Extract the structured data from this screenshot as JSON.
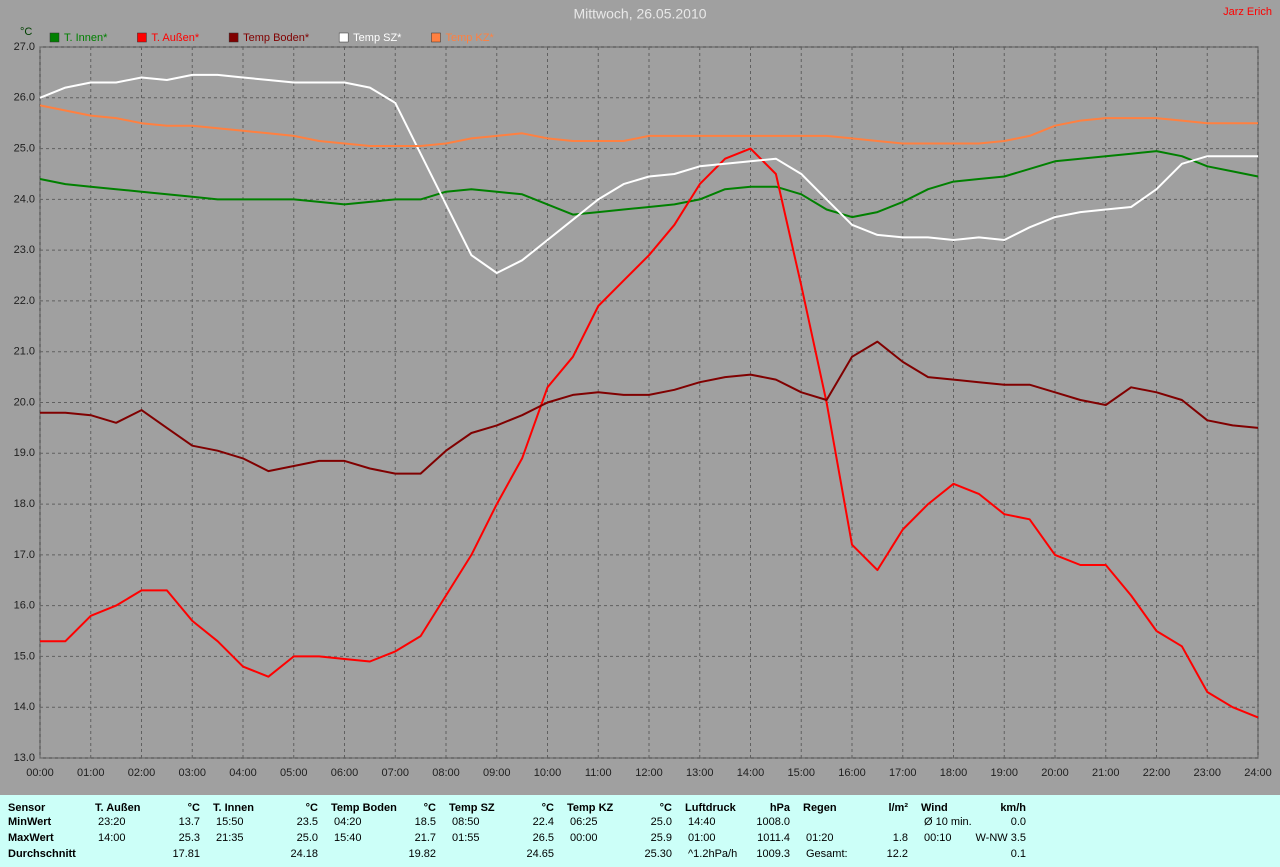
{
  "chart_data": {
    "type": "line",
    "title": "Mittwoch, 26.05.2010",
    "author": "Jarz Erich",
    "y_unit": "°C",
    "x": [
      0,
      0.5,
      1,
      1.5,
      2,
      2.5,
      3,
      3.5,
      4,
      4.5,
      5,
      5.5,
      6,
      6.5,
      7,
      7.5,
      8,
      8.5,
      9,
      9.5,
      10,
      10.5,
      11,
      11.5,
      12,
      12.5,
      13,
      13.5,
      14,
      14.5,
      15,
      15.5,
      16,
      16.5,
      17,
      17.5,
      18,
      18.5,
      19,
      19.5,
      20,
      20.5,
      21,
      21.5,
      22,
      22.5,
      23,
      23.5,
      24
    ],
    "xlim": [
      0,
      24
    ],
    "xticks": [
      {
        "value": 0,
        "label": "00:00"
      },
      {
        "value": 1,
        "label": "01:00"
      },
      {
        "value": 2,
        "label": "02:00"
      },
      {
        "value": 3,
        "label": "03:00"
      },
      {
        "value": 4,
        "label": "04:00"
      },
      {
        "value": 5,
        "label": "05:00"
      },
      {
        "value": 6,
        "label": "06:00"
      },
      {
        "value": 7,
        "label": "07:00"
      },
      {
        "value": 8,
        "label": "08:00"
      },
      {
        "value": 9,
        "label": "09:00"
      },
      {
        "value": 10,
        "label": "10:00"
      },
      {
        "value": 11,
        "label": "11:00"
      },
      {
        "value": 12,
        "label": "12:00"
      },
      {
        "value": 13,
        "label": "13:00"
      },
      {
        "value": 14,
        "label": "14:00"
      },
      {
        "value": 15,
        "label": "15:00"
      },
      {
        "value": 16,
        "label": "16:00"
      },
      {
        "value": 17,
        "label": "17:00"
      },
      {
        "value": 18,
        "label": "18:00"
      },
      {
        "value": 19,
        "label": "19:00"
      },
      {
        "value": 20,
        "label": "20:00"
      },
      {
        "value": 21,
        "label": "21:00"
      },
      {
        "value": 22,
        "label": "22:00"
      },
      {
        "value": 23,
        "label": "23:00"
      },
      {
        "value": 24,
        "label": "24:00"
      }
    ],
    "ylim": [
      13,
      27
    ],
    "yticks": [
      {
        "value": 13,
        "label": "13.0"
      },
      {
        "value": 14,
        "label": "14.0"
      },
      {
        "value": 15,
        "label": "15.0"
      },
      {
        "value": 16,
        "label": "16.0"
      },
      {
        "value": 17,
        "label": "17.0"
      },
      {
        "value": 18,
        "label": "18.0"
      },
      {
        "value": 19,
        "label": "19.0"
      },
      {
        "value": 20,
        "label": "20.0"
      },
      {
        "value": 21,
        "label": "21.0"
      },
      {
        "value": 22,
        "label": "22.0"
      },
      {
        "value": 23,
        "label": "23.0"
      },
      {
        "value": 24,
        "label": "24.0"
      },
      {
        "value": 25,
        "label": "25.0"
      },
      {
        "value": 26,
        "label": "26.0"
      },
      {
        "value": 27,
        "label": "27.0"
      }
    ],
    "grid": true,
    "series": [
      {
        "name": "T. Innen*",
        "color": "#008000",
        "values": [
          24.4,
          24.3,
          24.25,
          24.2,
          24.15,
          24.1,
          24.05,
          24.0,
          24.0,
          24.0,
          24.0,
          23.95,
          23.9,
          23.95,
          24.0,
          24.0,
          24.15,
          24.2,
          24.15,
          24.1,
          23.9,
          23.7,
          23.75,
          23.8,
          23.85,
          23.9,
          24.0,
          24.2,
          24.25,
          24.25,
          24.1,
          23.8,
          23.65,
          23.75,
          23.95,
          24.2,
          24.35,
          24.4,
          24.45,
          24.6,
          24.75,
          24.8,
          24.85,
          24.9,
          24.95,
          24.85,
          24.65,
          24.55,
          24.45
        ]
      },
      {
        "name": "T. Außen*",
        "color": "#ff0000",
        "values": [
          15.3,
          15.3,
          15.8,
          16.0,
          16.3,
          16.3,
          15.7,
          15.3,
          14.8,
          14.6,
          15.0,
          15.0,
          14.95,
          14.9,
          15.1,
          15.4,
          16.2,
          17.0,
          18.0,
          18.9,
          20.3,
          20.9,
          21.9,
          22.4,
          22.9,
          23.5,
          24.3,
          24.8,
          25.0,
          24.5,
          22.3,
          20.0,
          17.2,
          16.7,
          17.5,
          18.0,
          18.4,
          18.2,
          17.8,
          17.7,
          17.0,
          16.8,
          16.8,
          16.2,
          15.5,
          15.2,
          14.3,
          14.0,
          13.8
        ]
      },
      {
        "name": "Temp Boden*",
        "color": "#800000",
        "values": [
          19.8,
          19.8,
          19.75,
          19.6,
          19.85,
          19.5,
          19.15,
          19.05,
          18.9,
          18.65,
          18.75,
          18.85,
          18.85,
          18.7,
          18.6,
          18.6,
          19.05,
          19.4,
          19.55,
          19.75,
          20.0,
          20.15,
          20.2,
          20.15,
          20.15,
          20.25,
          20.4,
          20.5,
          20.55,
          20.45,
          20.2,
          20.05,
          20.9,
          21.2,
          20.8,
          20.5,
          20.45,
          20.4,
          20.35,
          20.35,
          20.2,
          20.05,
          19.95,
          20.3,
          20.2,
          20.05,
          19.65,
          19.55,
          19.5
        ]
      },
      {
        "name": "Temp SZ*",
        "color": "#ffffff",
        "values": [
          26.0,
          26.2,
          26.3,
          26.3,
          26.4,
          26.35,
          26.45,
          26.45,
          26.4,
          26.35,
          26.3,
          26.3,
          26.3,
          26.2,
          25.9,
          24.9,
          23.9,
          22.9,
          22.55,
          22.8,
          23.2,
          23.6,
          24.0,
          24.3,
          24.45,
          24.5,
          24.65,
          24.7,
          24.75,
          24.8,
          24.5,
          24.0,
          23.5,
          23.3,
          23.25,
          23.25,
          23.2,
          23.25,
          23.2,
          23.45,
          23.65,
          23.75,
          23.8,
          23.85,
          24.2,
          24.7,
          24.85,
          24.85,
          24.85
        ]
      },
      {
        "name": "Temp KZ*",
        "color": "#ff8040",
        "values": [
          25.85,
          25.75,
          25.65,
          25.6,
          25.5,
          25.45,
          25.45,
          25.4,
          25.35,
          25.3,
          25.25,
          25.15,
          25.1,
          25.05,
          25.05,
          25.05,
          25.1,
          25.2,
          25.25,
          25.3,
          25.2,
          25.15,
          25.15,
          25.15,
          25.25,
          25.25,
          25.25,
          25.25,
          25.25,
          25.25,
          25.25,
          25.25,
          25.2,
          25.15,
          25.1,
          25.1,
          25.1,
          25.1,
          25.15,
          25.25,
          25.45,
          25.55,
          25.6,
          25.6,
          25.6,
          25.55,
          25.5,
          25.5,
          25.5
        ]
      }
    ]
  },
  "table": {
    "header_label": "Sensor",
    "row_labels": [
      "MinWert",
      "MaxWert",
      "Durchschnitt"
    ],
    "columns": [
      {
        "name": "T. Außen",
        "unit": "°C",
        "cells": [
          {
            "time": "23:20",
            "value": "13.7"
          },
          {
            "time": "14:00",
            "value": "25.3"
          },
          {
            "value": "17.81"
          }
        ]
      },
      {
        "name": "T. Innen",
        "unit": "°C",
        "cells": [
          {
            "time": "15:50",
            "value": "23.5"
          },
          {
            "time": "21:35",
            "value": "25.0"
          },
          {
            "value": "24.18"
          }
        ]
      },
      {
        "name": "Temp Boden",
        "unit": "°C",
        "cells": [
          {
            "time": "04:20",
            "value": "18.5"
          },
          {
            "time": "15:40",
            "value": "21.7"
          },
          {
            "value": "19.82"
          }
        ]
      },
      {
        "name": "Temp SZ",
        "unit": "°C",
        "cells": [
          {
            "time": "08:50",
            "value": "22.4"
          },
          {
            "time": "01:55",
            "value": "26.5"
          },
          {
            "value": "24.65"
          }
        ]
      },
      {
        "name": "Temp KZ",
        "unit": "°C",
        "cells": [
          {
            "time": "06:25",
            "value": "25.0"
          },
          {
            "time": "00:00",
            "value": "25.9"
          },
          {
            "value": "25.30"
          }
        ]
      },
      {
        "name": "Luftdruck",
        "unit": "hPa",
        "cells": [
          {
            "time": "14:40",
            "value": "1008.0"
          },
          {
            "time": "01:00",
            "value": "1011.4"
          },
          {
            "time": "^1.2hPa/h",
            "value": "1009.3"
          }
        ]
      },
      {
        "name": "Regen",
        "unit": "l/m²",
        "cells": [
          null,
          {
            "time": "01:20",
            "value": "1.8"
          },
          {
            "time": "Gesamt:",
            "value": "12.2"
          }
        ]
      },
      {
        "name": "Wind",
        "unit": "km/h",
        "cells": [
          {
            "time": "Ø 10 min.",
            "value": "0.0"
          },
          {
            "time": "00:10",
            "value": "W-NW 3.5"
          },
          {
            "value": "0.1"
          }
        ]
      }
    ]
  }
}
